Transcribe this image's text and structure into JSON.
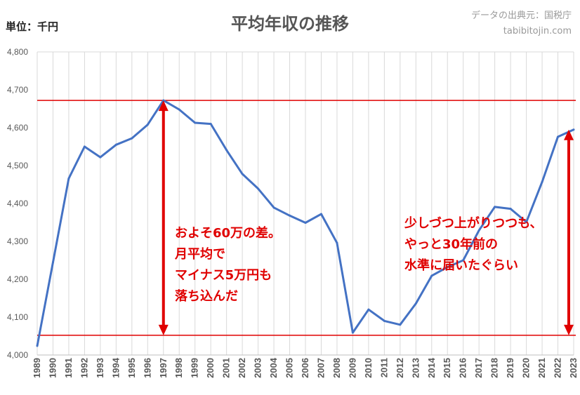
{
  "header": {
    "unit_label": "単位：千円",
    "title": "平均年収の推移",
    "source_line1": "データの出典元：国税庁",
    "source_line2": "tabibitojin.com"
  },
  "annotations": {
    "left_lines": [
      "およそ60万の差。",
      "月平均で",
      "マイナス5万円も",
      "落ち込んだ"
    ],
    "right_lines": [
      "少しづつ上がりつつも、",
      "やっと30年前の",
      "水準に届いたぐらい"
    ]
  },
  "colors": {
    "line": "#4472c4",
    "accent": "#e00000",
    "grid": "#d9d9d9",
    "axis_text": "#595959"
  },
  "chart_data": {
    "type": "line",
    "title": "平均年収の推移",
    "ylabel": "単位：千円",
    "xlabel": "",
    "ylim": [
      4000,
      4800
    ],
    "y_ticks": [
      4000,
      4100,
      4200,
      4300,
      4400,
      4500,
      4600,
      4700,
      4800
    ],
    "y_tick_labels": [
      "4,000",
      "4,100",
      "4,200",
      "4,300",
      "4,400",
      "4,500",
      "4,600",
      "4,700",
      "4,800"
    ],
    "grid": "vertical",
    "x": [
      "1989",
      "1990",
      "1991",
      "1992",
      "1993",
      "1994",
      "1995",
      "1996",
      "1997",
      "1998",
      "1999",
      "2000",
      "2001",
      "2002",
      "2003",
      "2004",
      "2005",
      "2006",
      "2007",
      "2008",
      "2009",
      "2010",
      "2011",
      "2012",
      "2013",
      "2014",
      "2015",
      "2016",
      "2017",
      "2018",
      "2019",
      "2020",
      "2021",
      "2022",
      "2023"
    ],
    "series": [
      {
        "values": [
          4024,
          4245,
          4466,
          4550,
          4522,
          4555,
          4572,
          4608,
          4672,
          4648,
          4613,
          4610,
          4541,
          4478,
          4439,
          4389,
          4368,
          4349,
          4372,
          4296,
          4059,
          4120,
          4090,
          4080,
          4136,
          4209,
          4232,
          4250,
          4329,
          4391,
          4386,
          4351,
          4457,
          4576,
          4595
        ]
      }
    ],
    "reference_lines": [
      {
        "value": 4672
      },
      {
        "value": 4052
      }
    ],
    "arrows": [
      {
        "x": "1997",
        "from": 4052,
        "to": 4672
      },
      {
        "x": "2023",
        "from": 4052,
        "to": 4595
      }
    ]
  }
}
